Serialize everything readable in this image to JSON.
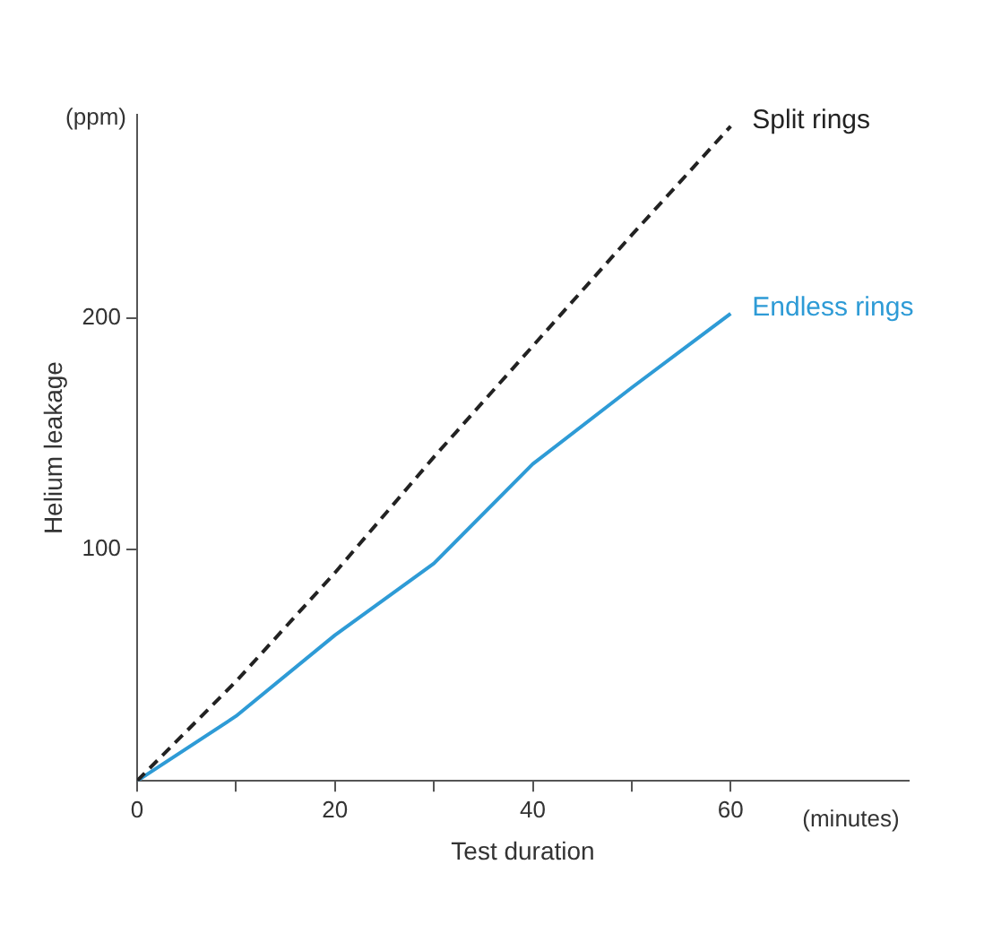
{
  "chart_data": {
    "type": "line",
    "xlabel": "Test duration",
    "ylabel": "Helium leakage",
    "annotations": [
      "(ppm)",
      "(minutes)"
    ],
    "x": [
      0,
      10,
      20,
      30,
      40,
      50,
      60
    ],
    "series": [
      {
        "name": "Split rings",
        "color": "#222222",
        "line_style": "dashed",
        "values": [
          0,
          43,
          90,
          140,
          188,
          236,
          283
        ]
      },
      {
        "name": "Endless rings",
        "color": "#2e9bd6",
        "line_style": "solid",
        "values": [
          0,
          28,
          63,
          94,
          137,
          170,
          202
        ]
      }
    ],
    "xlim": [
      0,
      78
    ],
    "ylim": [
      0,
      288
    ],
    "xticks": [
      0,
      {
        "value": 10,
        "label": null
      },
      20,
      {
        "value": 30,
        "label": null
      },
      40,
      {
        "value": 50,
        "label": null
      },
      60
    ],
    "yticks": [
      100,
      200
    ],
    "grid": false,
    "legend": false,
    "marker": "none"
  }
}
